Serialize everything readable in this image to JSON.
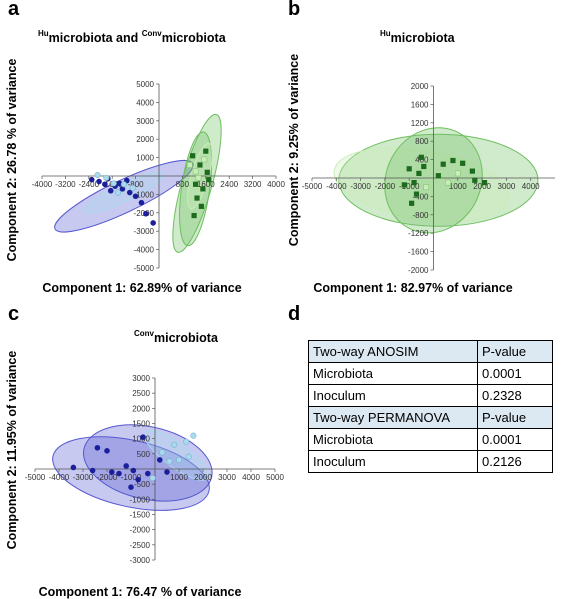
{
  "panels": {
    "a": {
      "letter": "a",
      "title_parts": [
        {
          "sup": "Hu",
          "text": "microbiota and "
        },
        {
          "sup": "Conv",
          "text": "microbiota"
        }
      ],
      "xlabel": "Component 1: 62.89% of variance",
      "ylabel": "Component 2: 26.78 % of variance"
    },
    "b": {
      "letter": "b",
      "title_parts": [
        {
          "sup": "Hu",
          "text": "microbiota"
        }
      ],
      "xlabel": "Component 1: 82.97% of variance",
      "ylabel": "Component 2: 9.25% of variance"
    },
    "c": {
      "letter": "c",
      "title_parts": [
        {
          "sup": "Conv",
          "text": "microbiota"
        }
      ],
      "xlabel": "Component 1: 76.47 % of variance",
      "ylabel": "Component 2: 11.95% of variance"
    },
    "d": {
      "letter": "d",
      "table": [
        {
          "header": true,
          "cells": [
            "Two-way ANOSIM",
            "P-value"
          ]
        },
        {
          "header": false,
          "cells": [
            "Microbiota",
            "0.0001"
          ]
        },
        {
          "header": false,
          "cells": [
            "Inoculum",
            "0.2328"
          ]
        },
        {
          "header": true,
          "cells": [
            "Two-way PERMANOVA",
            " P-value"
          ]
        },
        {
          "header": false,
          "cells": [
            "Microbiota",
            "0.0001"
          ]
        },
        {
          "header": false,
          "cells": [
            "Inoculum",
            "0.2126"
          ]
        }
      ]
    }
  },
  "colors": {
    "conv_dark": "#1b1f9b",
    "conv_ellipse": "#5558cf",
    "conv_light": "#a9d9ec",
    "hu_dark": "#1d6b1d",
    "hu_ellipse": "#6ebf5f",
    "hu_light": "#c9ecb8"
  },
  "chart_data": [
    {
      "id": "a",
      "type": "scatter",
      "title": "Humicrobiota and Convmicrobiota",
      "xlabel": "Component 1: 62.89% of variance",
      "ylabel": "Component 2: 26.78 % of variance",
      "xlim": [
        -4000,
        4000
      ],
      "ylim": [
        -5000,
        5000
      ],
      "xticks": [
        -4000,
        -3200,
        -2400,
        -1600,
        -800,
        800,
        1600,
        2400,
        3200,
        4000
      ],
      "xtick_labels": [
        "-4000",
        "-3200",
        "-2400",
        "-1600",
        "-800",
        "800",
        "1600",
        "2400",
        "3200",
        "4000"
      ],
      "yticks": [
        -5000,
        -4000,
        -3000,
        -2000,
        -1000,
        1000,
        2000,
        3000,
        4000,
        5000
      ],
      "grid": false,
      "series": [
        {
          "color": "conv_dark",
          "marker": "circle",
          "points": [
            [
              -2300,
              -200
            ],
            [
              -2050,
              -300
            ],
            [
              -1750,
              -150
            ],
            [
              -1500,
              -550
            ],
            [
              -1650,
              -800
            ],
            [
              -1250,
              -700
            ],
            [
              -1000,
              -900
            ],
            [
              -800,
              -1100
            ],
            [
              -600,
              -1450
            ],
            [
              -450,
              -2050
            ],
            [
              -200,
              -2550
            ],
            [
              -1850,
              -450
            ],
            [
              -1350,
              -400
            ],
            [
              -1100,
              -250
            ]
          ]
        },
        {
          "color": "conv_light",
          "marker": "circle",
          "points": [
            [
              -2100,
              50
            ],
            [
              -1800,
              -100
            ],
            [
              -1550,
              -400
            ],
            [
              -1200,
              -450
            ],
            [
              -900,
              -650
            ],
            [
              -1400,
              -900
            ]
          ]
        },
        {
          "color": "hu_dark",
          "marker": "square",
          "points": [
            [
              1150,
              1100
            ],
            [
              1400,
              600
            ],
            [
              1650,
              200
            ],
            [
              1250,
              -450
            ],
            [
              1500,
              -700
            ],
            [
              1300,
              -1200
            ],
            [
              1450,
              -1650
            ],
            [
              1200,
              -2150
            ],
            [
              1600,
              1350
            ],
            [
              1700,
              -200
            ]
          ]
        },
        {
          "color": "hu_light",
          "marker": "square",
          "points": [
            [
              1050,
              600
            ],
            [
              1350,
              -100
            ],
            [
              1550,
              900
            ],
            [
              1250,
              250
            ]
          ]
        }
      ],
      "ellipses": [
        {
          "color": "conv_ellipse",
          "cx": -1200,
          "cy": -1100,
          "rx": 2950,
          "ry": 700,
          "angle": 37
        },
        {
          "color": "conv_light",
          "cx": -1200,
          "cy": -900,
          "rx": 1700,
          "ry": 380,
          "angle": 37
        },
        {
          "color": "hu_ellipse",
          "cx": 1300,
          "cy": -400,
          "rx": 3800,
          "ry": 520,
          "angle": 80
        },
        {
          "color": "hu_ellipse",
          "cx": 1250,
          "cy": -700,
          "rx": 3100,
          "ry": 480,
          "angle": 85
        },
        {
          "color": "hu_light",
          "cx": 1400,
          "cy": 0,
          "rx": 1800,
          "ry": 300,
          "angle": 80
        }
      ]
    },
    {
      "id": "b",
      "type": "scatter",
      "title": "Humicrobiota",
      "xlabel": "Component 1: 82.97% of variance",
      "ylabel": "Component 2: 9.25% of variance",
      "xlim": [
        -5000,
        5000
      ],
      "ylim": [
        -2000,
        2000
      ],
      "xticks": [
        -5000,
        -4000,
        -3000,
        -2000,
        -1000,
        1000,
        2000,
        3000,
        4000
      ],
      "xtick_labels": [
        "-5000",
        "-4000",
        "-3000",
        "-2000",
        "-1000",
        "1000",
        "2000",
        "3000",
        "4000"
      ],
      "yticks": [
        -2000,
        -1600,
        -1200,
        -800,
        -400,
        400,
        800,
        1200,
        1600,
        2000
      ],
      "grid": false,
      "series": [
        {
          "color": "hu_dark",
          "marker": "square",
          "points": [
            [
              -1000,
              200
            ],
            [
              -800,
              -100
            ],
            [
              -700,
              -350
            ],
            [
              -900,
              -550
            ],
            [
              -600,
              100
            ],
            [
              -400,
              250
            ],
            [
              200,
              50
            ],
            [
              400,
              300
            ],
            [
              800,
              380
            ],
            [
              1200,
              320
            ],
            [
              1600,
              150
            ],
            [
              1700,
              -50
            ],
            [
              2100,
              -100
            ],
            [
              -1200,
              -150
            ],
            [
              -500,
              450
            ]
          ]
        },
        {
          "color": "hu_light",
          "marker": "square",
          "points": [
            [
              -300,
              -200
            ],
            [
              600,
              -100
            ],
            [
              1000,
              100
            ]
          ]
        }
      ],
      "ellipses": [
        {
          "color": "hu_ellipse",
          "cx": 200,
          "cy": -50,
          "rx": 4100,
          "ry": 1000,
          "angle": 0
        },
        {
          "color": "hu_light",
          "cx": -500,
          "cy": -150,
          "rx": 3600,
          "ry": 750,
          "angle": -5
        },
        {
          "color": "hu_ellipse",
          "cx": 0,
          "cy": -50,
          "rx": 1800,
          "ry": 1200,
          "angle": -15
        }
      ]
    },
    {
      "id": "c",
      "type": "scatter",
      "title": "Convmicrobiota",
      "xlabel": "Component 1: 76.47 % of variance",
      "ylabel": "Component 2: 11.95% of variance",
      "xlim": [
        -5000,
        5000
      ],
      "ylim": [
        -3000,
        3000
      ],
      "xticks": [
        -5000,
        -4000,
        -3000,
        -2000,
        -1000,
        1000,
        2000,
        3000,
        4000,
        5000
      ],
      "xtick_labels": [
        "-5000",
        "-4000",
        "-3000",
        "-2000",
        "-1000",
        "1000",
        "2000",
        "3000",
        "4000",
        "5000"
      ],
      "yticks": [
        -3000,
        -2500,
        -2000,
        -1500,
        -1000,
        -500,
        500,
        1000,
        1500,
        2000,
        2500,
        3000
      ],
      "grid": false,
      "series": [
        {
          "color": "conv_dark",
          "marker": "circle",
          "points": [
            [
              -3400,
              50
            ],
            [
              -2400,
              700
            ],
            [
              -2000,
              600
            ],
            [
              -1800,
              -100
            ],
            [
              -1500,
              -150
            ],
            [
              -1200,
              100
            ],
            [
              -900,
              -50
            ],
            [
              -700,
              -350
            ],
            [
              -500,
              1050
            ],
            [
              -300,
              -150
            ],
            [
              200,
              300
            ],
            [
              500,
              -100
            ],
            [
              -2600,
              -50
            ],
            [
              -1000,
              -600
            ]
          ]
        },
        {
          "color": "conv_light",
          "marker": "circle",
          "points": [
            [
              300,
              550
            ],
            [
              800,
              800
            ],
            [
              1300,
              900
            ],
            [
              1600,
              1100
            ],
            [
              600,
              250
            ],
            [
              1000,
              300
            ],
            [
              -100,
              -300
            ],
            [
              1400,
              400
            ]
          ]
        }
      ],
      "ellipses": [
        {
          "color": "conv_ellipse",
          "cx": -1000,
          "cy": -150,
          "rx": 3300,
          "ry": 1100,
          "angle": -10
        },
        {
          "color": "conv_ellipse",
          "cx": -300,
          "cy": 200,
          "rx": 2700,
          "ry": 1200,
          "angle": -10
        },
        {
          "color": "conv_light",
          "cx": 900,
          "cy": 450,
          "rx": 1500,
          "ry": 420,
          "angle": -30
        }
      ]
    }
  ]
}
